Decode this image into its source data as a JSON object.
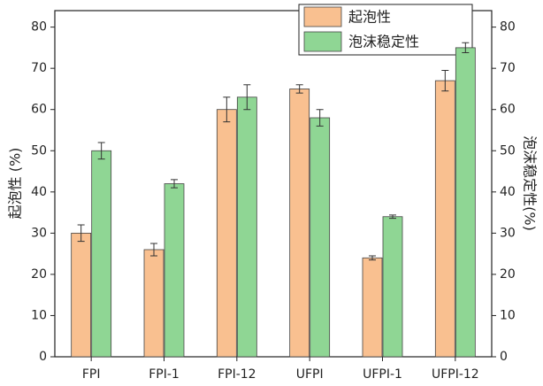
{
  "chart_data": {
    "type": "bar",
    "categories": [
      "FPI",
      "FPI-1",
      "FPI-12",
      "UFPI",
      "UFPI-1",
      "UFPI-12"
    ],
    "y_label": "起泡性 (%)",
    "y2_label": "泡沫稳定性(%)",
    "ylim": [
      0,
      84
    ],
    "yticks": [
      0,
      10,
      20,
      30,
      40,
      50,
      60,
      70,
      80
    ],
    "y2lim": [
      0,
      84
    ],
    "y2ticks": [
      0,
      10,
      20,
      30,
      40,
      50,
      60,
      70,
      80
    ],
    "legend": "upper right",
    "series": [
      {
        "name": "起泡性",
        "color": "#f9c090",
        "values": [
          30,
          26,
          60,
          65,
          24,
          67
        ],
        "errors": [
          2,
          1.5,
          3,
          1,
          0.5,
          2.5
        ]
      },
      {
        "name": "泡沫稳定性",
        "color": "#8fd694",
        "axis": "y2",
        "values": [
          50,
          42,
          63,
          58,
          34,
          75
        ],
        "errors": [
          2,
          1,
          3,
          2,
          0.4,
          1.2
        ]
      }
    ]
  }
}
